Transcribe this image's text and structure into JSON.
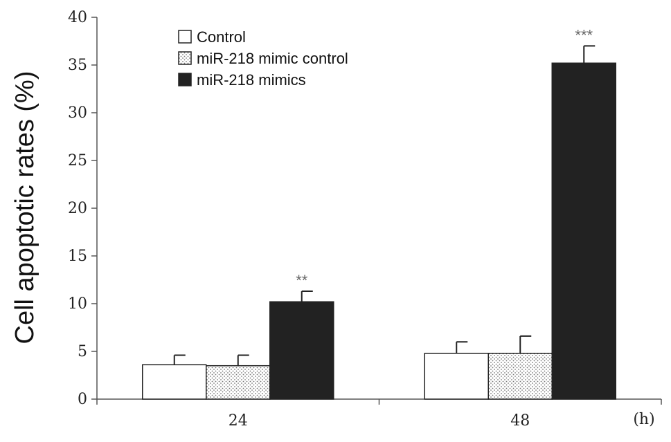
{
  "chart_data": {
    "type": "bar",
    "title": "",
    "xlabel": "",
    "x_unit": "(h)",
    "ylabel": "Cell apoptotic rates (%)",
    "ylim": [
      0,
      40
    ],
    "yticks": [
      0,
      5,
      10,
      15,
      20,
      25,
      30,
      35,
      40
    ],
    "categories": [
      "24",
      "48"
    ],
    "series": [
      {
        "name": "Control",
        "values": [
          3.6,
          4.8
        ],
        "errors": [
          1.0,
          1.2
        ],
        "fill": "#ffffff",
        "pattern": "none"
      },
      {
        "name": "miR-218 mimic control",
        "values": [
          3.5,
          4.8
        ],
        "errors": [
          1.1,
          1.8
        ],
        "fill": "#ffffff",
        "pattern": "dots"
      },
      {
        "name": "miR-218 mimics",
        "values": [
          10.2,
          35.2
        ],
        "errors": [
          1.1,
          1.8
        ],
        "fill": "#222222",
        "pattern": "none"
      }
    ],
    "annotations": [
      {
        "category": "24",
        "series": "miR-218 mimics",
        "text": "**"
      },
      {
        "category": "48",
        "series": "miR-218 mimics",
        "text": "***"
      }
    ],
    "legend_position": "top-left",
    "grid": false
  }
}
